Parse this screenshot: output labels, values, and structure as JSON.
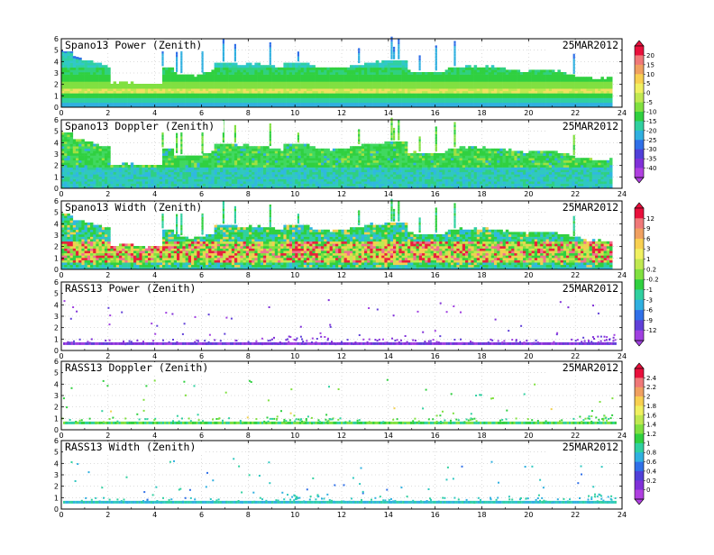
{
  "chart_data": [
    {
      "type": "heatmap",
      "title": "Spano13 Power (Zenith)",
      "date": "25MAR2012",
      "xlim": [
        0,
        24
      ],
      "ylim": [
        0,
        6
      ],
      "x_ticks": [
        "0",
        "2",
        "4",
        "6",
        "8",
        "10",
        "12",
        "14",
        "16",
        "18",
        "20",
        "22",
        "24"
      ],
      "y_ticks": [
        "0",
        "1",
        "2",
        "3",
        "4",
        "5",
        "6"
      ],
      "grid": true,
      "pattern": "power",
      "colorbar": {
        "labels": [
          "20",
          "15",
          "10",
          "5",
          "0",
          "-5",
          "-10",
          "-15",
          "-20",
          "-25",
          "-30",
          "-35",
          "-40"
        ],
        "colors": [
          "#e8103c",
          "#f07878",
          "#f0a060",
          "#f8d050",
          "#f0f060",
          "#c0e850",
          "#80e040",
          "#30d040",
          "#30d0a0",
          "#30b0e0",
          "#3070e8",
          "#5040d8",
          "#8030d8",
          "#b040e0"
        ]
      }
    },
    {
      "type": "heatmap",
      "title": "Spano13 Doppler (Zenith)",
      "date": "25MAR2012",
      "xlim": [
        0,
        24
      ],
      "ylim": [
        0,
        6
      ],
      "x_ticks": [
        "0",
        "2",
        "4",
        "6",
        "8",
        "10",
        "12",
        "14",
        "16",
        "18",
        "20",
        "22",
        "24"
      ],
      "y_ticks": [
        "0",
        "1",
        "2",
        "3",
        "4",
        "5",
        "6"
      ],
      "grid": true,
      "pattern": "doppler"
    },
    {
      "type": "heatmap",
      "title": "Spano13 Width (Zenith)",
      "date": "25MAR2012",
      "xlim": [
        0,
        24
      ],
      "ylim": [
        0,
        6
      ],
      "x_ticks": [
        "0",
        "2",
        "4",
        "6",
        "8",
        "10",
        "12",
        "14",
        "16",
        "18",
        "20",
        "22",
        "24"
      ],
      "y_ticks": [
        "0",
        "1",
        "2",
        "3",
        "4",
        "5",
        "6"
      ],
      "grid": true,
      "pattern": "width",
      "colorbar": {
        "labels": [
          "12",
          "9",
          "6",
          "3",
          "1",
          "0.2",
          "-0.2",
          "-1",
          "-3",
          "-6",
          "-9",
          "-12"
        ],
        "colors": [
          "#e8103c",
          "#f07878",
          "#f0a060",
          "#f8d050",
          "#f0f060",
          "#c0e850",
          "#80e040",
          "#30d040",
          "#30d0a0",
          "#30b0e0",
          "#3070e8",
          "#6040d8",
          "#a040e0"
        ]
      }
    },
    {
      "type": "scatter",
      "title": "RASS13 Power (Zenith)",
      "date": "25MAR2012",
      "xlim": [
        0,
        24
      ],
      "ylim": [
        0,
        6
      ],
      "x_ticks": [
        "0",
        "2",
        "4",
        "6",
        "8",
        "10",
        "12",
        "14",
        "16",
        "18",
        "20",
        "22",
        "24"
      ],
      "y_ticks": [
        "0",
        "1",
        "2",
        "3",
        "4",
        "5",
        "6"
      ],
      "grid": true,
      "pattern": "rass-power"
    },
    {
      "type": "scatter",
      "title": "RASS13 Doppler (Zenith)",
      "date": "25MAR2012",
      "xlim": [
        0,
        24
      ],
      "ylim": [
        0,
        6
      ],
      "x_ticks": [
        "0",
        "2",
        "4",
        "6",
        "8",
        "10",
        "12",
        "14",
        "16",
        "18",
        "20",
        "22",
        "24"
      ],
      "y_ticks": [
        "0",
        "1",
        "2",
        "3",
        "4",
        "5",
        "6"
      ],
      "grid": true,
      "pattern": "rass-doppler",
      "colorbar": {
        "labels": [
          "2.4",
          "2.2",
          "2",
          "1.8",
          "1.6",
          "1.4",
          "1.2",
          "1",
          "0.8",
          "0.6",
          "0.4",
          "0.2",
          "0"
        ],
        "colors": [
          "#e8103c",
          "#f07878",
          "#f0a060",
          "#f8d050",
          "#f0f060",
          "#c0e850",
          "#80e040",
          "#30d040",
          "#30d0a0",
          "#30b0e0",
          "#3070e8",
          "#5040d8",
          "#8030d8",
          "#b040e0"
        ]
      }
    },
    {
      "type": "scatter",
      "title": "RASS13 Width (Zenith)",
      "date": "25MAR2012",
      "xlim": [
        0,
        24
      ],
      "ylim": [
        0,
        6
      ],
      "x_ticks": [
        "0",
        "2",
        "4",
        "6",
        "8",
        "10",
        "12",
        "14",
        "16",
        "18",
        "20",
        "22",
        "24"
      ],
      "y_ticks": [
        "0",
        "1",
        "2",
        "3",
        "4",
        "5",
        "6"
      ],
      "grid": true,
      "pattern": "rass-width"
    }
  ]
}
